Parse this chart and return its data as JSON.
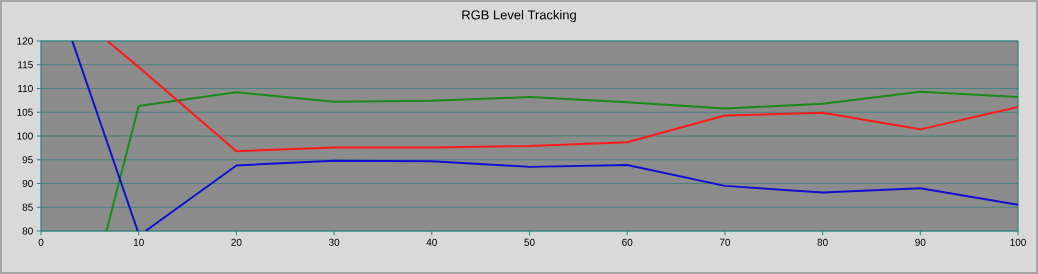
{
  "chart_data": {
    "type": "line",
    "title": "RGB Level Tracking",
    "series": [
      {
        "color": "#1a8a1a",
        "x": [
          6.7,
          10,
          20,
          30,
          40,
          50,
          60,
          70,
          80,
          90,
          100
        ],
        "values": [
          80,
          106.3,
          109.2,
          107.2,
          107.4,
          108.2,
          107.1,
          105.8,
          106.8,
          109.3,
          108.2
        ]
      },
      {
        "color": "#ff1a1a",
        "x": [
          6.8,
          10,
          20,
          30,
          40,
          50,
          60,
          70,
          80,
          90,
          100
        ],
        "values": [
          120,
          114.5,
          96.8,
          97.6,
          97.6,
          97.9,
          98.7,
          104.3,
          104.9,
          101.4,
          106.1
        ]
      },
      {
        "color": "#1010d0",
        "x": [
          3.2,
          9.9,
          10.3,
          10.7,
          20,
          30,
          40,
          50,
          60,
          70,
          80,
          90,
          100
        ],
        "values": [
          120,
          80,
          null,
          80,
          93.8,
          94.8,
          94.7,
          93.5,
          93.9,
          89.5,
          88.1,
          89.0,
          85.5
        ]
      }
    ],
    "xlim": [
      0,
      100
    ],
    "ylim": [
      80,
      120
    ],
    "xticks": [
      0,
      10,
      20,
      30,
      40,
      50,
      60,
      70,
      80,
      90,
      100
    ],
    "yticks": [
      80,
      85,
      90,
      95,
      100,
      105,
      110,
      115,
      120
    ],
    "grid": "y",
    "marker": "none",
    "line_style": "solid"
  }
}
